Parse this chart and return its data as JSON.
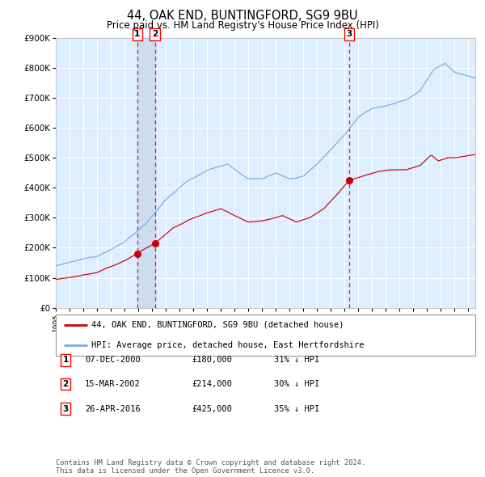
{
  "title": "44, OAK END, BUNTINGFORD, SG9 9BU",
  "subtitle": "Price paid vs. HM Land Registry's House Price Index (HPI)",
  "legend_line1": "44, OAK END, BUNTINGFORD, SG9 9BU (detached house)",
  "legend_line2": "HPI: Average price, detached house, East Hertfordshire",
  "transactions": [
    {
      "num": 1,
      "date": "07-DEC-2000",
      "price": 180000,
      "hpi_text": "31% ↓ HPI",
      "x_year": 2000.92
    },
    {
      "num": 2,
      "date": "15-MAR-2002",
      "price": 214000,
      "hpi_text": "30% ↓ HPI",
      "x_year": 2002.21
    },
    {
      "num": 3,
      "date": "26-APR-2016",
      "price": 425000,
      "hpi_text": "35% ↓ HPI",
      "x_year": 2016.32
    }
  ],
  "footer": "Contains HM Land Registry data © Crown copyright and database right 2024.\nThis data is licensed under the Open Government Licence v3.0.",
  "hpi_color": "#7aabdb",
  "price_color": "#cc0000",
  "marker_color": "#cc0000",
  "vline_color": "#cc0000",
  "highlight_color": "#ccddf0",
  "bg_color": "#ffffff",
  "plot_bg_color": "#ddeeff",
  "grid_color": "#ffffff",
  "ylim": [
    0,
    900000
  ],
  "xlim_start": 1995.0,
  "xlim_end": 2025.5
}
